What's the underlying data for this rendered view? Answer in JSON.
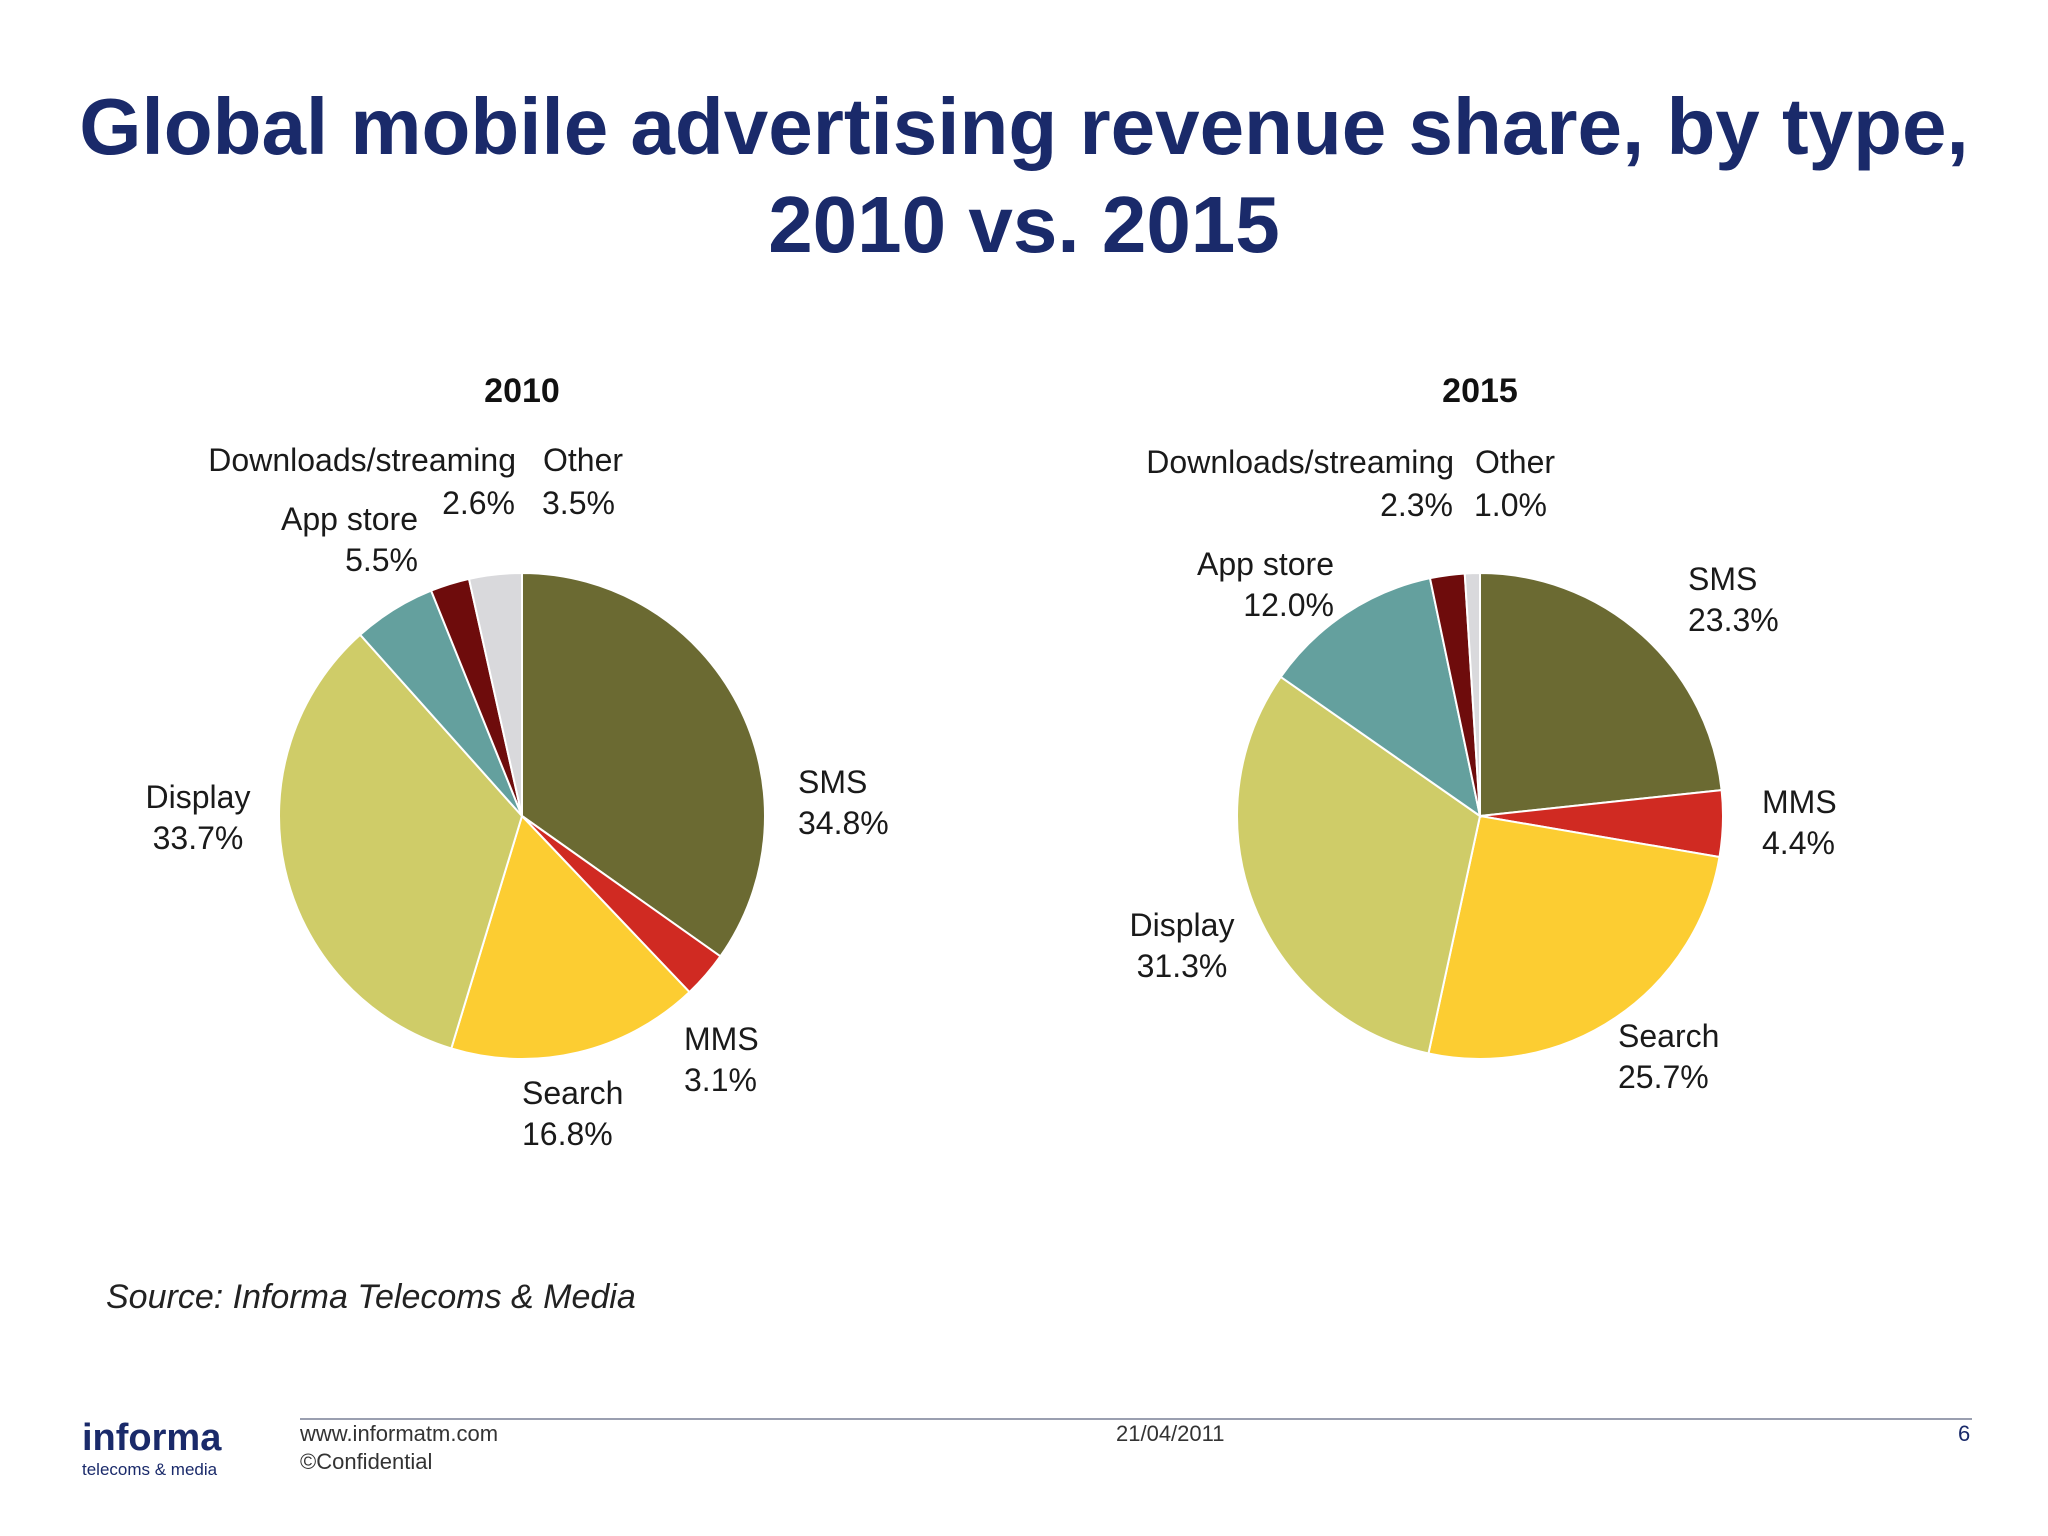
{
  "title": {
    "line1": "Global mobile advertising revenue share, by type,",
    "line2": "2010 vs. 2015"
  },
  "chart_data": [
    {
      "type": "pie",
      "title": "2010",
      "unit": "%",
      "slices": [
        {
          "label": "SMS",
          "value": 34.8,
          "display": "34.8%",
          "color": "#6b6a32"
        },
        {
          "label": "MMS",
          "value": 3.1,
          "display": "3.1%",
          "color": "#d02a22"
        },
        {
          "label": "Search",
          "value": 16.8,
          "display": "16.8%",
          "color": "#fccd32"
        },
        {
          "label": "Display",
          "value": 33.7,
          "display": "33.7%",
          "color": "#cfcc68"
        },
        {
          "label": "App store",
          "value": 5.5,
          "display": "5.5%",
          "color": "#64a09e"
        },
        {
          "label": "Downloads/streaming",
          "value": 2.6,
          "display": "2.6%",
          "color": "#6e0c0c"
        },
        {
          "label": "Other",
          "value": 3.5,
          "display": "3.5%",
          "color": "#d9d9dc"
        }
      ]
    },
    {
      "type": "pie",
      "title": "2015",
      "unit": "%",
      "slices": [
        {
          "label": "SMS",
          "value": 23.3,
          "display": "23.3%",
          "color": "#6b6a32"
        },
        {
          "label": "MMS",
          "value": 4.4,
          "display": "4.4%",
          "color": "#d02a22"
        },
        {
          "label": "Search",
          "value": 25.7,
          "display": "25.7%",
          "color": "#fccd32"
        },
        {
          "label": "Display",
          "value": 31.3,
          "display": "31.3%",
          "color": "#cfcc68"
        },
        {
          "label": "App store",
          "value": 12.0,
          "display": "12.0%",
          "color": "#64a09e"
        },
        {
          "label": "Downloads/streaming",
          "value": 2.3,
          "display": "2.3%",
          "color": "#6e0c0c"
        },
        {
          "label": "Other",
          "value": 1.0,
          "display": "1.0%",
          "color": "#d9d9dc"
        }
      ]
    }
  ],
  "source": "Source: Informa Telecoms & Media",
  "footer": {
    "logo_main": "informa",
    "logo_sub": "telecoms & media",
    "url": "www.informatm.com",
    "confidential": "©Confidential",
    "date": "21/04/2011",
    "page_number": "6"
  }
}
